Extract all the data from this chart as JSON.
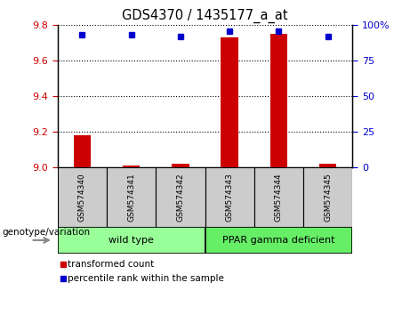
{
  "title": "GDS4370 / 1435177_a_at",
  "samples": [
    "GSM574340",
    "GSM574341",
    "GSM574342",
    "GSM574343",
    "GSM574344",
    "GSM574345"
  ],
  "transformed_counts": [
    9.18,
    9.01,
    9.02,
    9.73,
    9.75,
    9.02
  ],
  "percentile_ranks": [
    93,
    93,
    92,
    96,
    96,
    92
  ],
  "ylim_left": [
    9.0,
    9.8
  ],
  "ylim_right": [
    0,
    100
  ],
  "yticks_left": [
    9.0,
    9.2,
    9.4,
    9.6,
    9.8
  ],
  "yticks_right": [
    0,
    25,
    50,
    75,
    100
  ],
  "ytick_labels_right": [
    "0",
    "25",
    "50",
    "75",
    "100%"
  ],
  "bar_color": "#cc0000",
  "dot_color": "#0000cc",
  "bar_baseline": 9.0,
  "groups": [
    {
      "label": "wild type",
      "start": 0,
      "end": 3,
      "color": "#99ff99"
    },
    {
      "label": "PPAR gamma deficient",
      "start": 3,
      "end": 6,
      "color": "#66ee66"
    }
  ],
  "group_label_prefix": "genotype/variation",
  "legend": [
    {
      "color": "#cc0000",
      "label": "transformed count"
    },
    {
      "color": "#0000cc",
      "label": "percentile rank within the sample"
    }
  ],
  "grid_color": "black",
  "grid_style": "dotted",
  "tick_label_color_left": "#cc0000",
  "tick_label_color_right": "#0000cc",
  "bar_width": 0.35,
  "sample_box_color": "#cccccc",
  "sample_box_border": "black",
  "fig_width": 4.61,
  "fig_height": 3.54,
  "dpi": 100
}
